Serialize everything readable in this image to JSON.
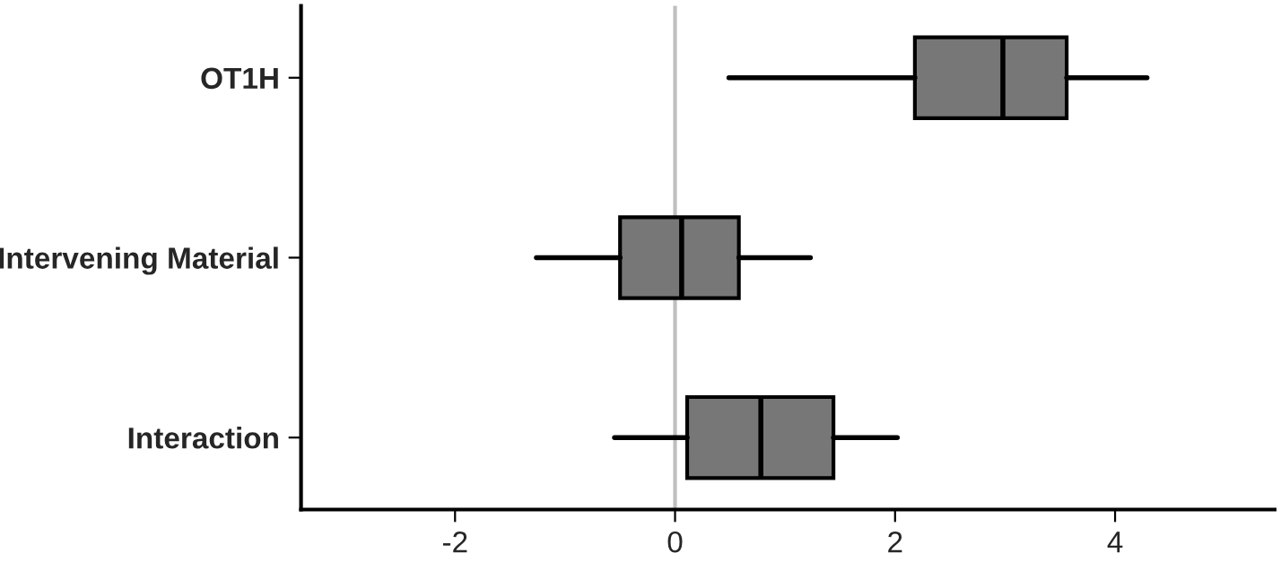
{
  "chart_data": {
    "type": "box",
    "orientation": "horizontal",
    "categories": [
      "OT1H",
      "Intervening Material",
      "Interaction"
    ],
    "boxes": [
      {
        "low": 0.49,
        "q1": 2.18,
        "median": 2.98,
        "q3": 3.56,
        "high": 4.29
      },
      {
        "low": -1.26,
        "q1": -0.5,
        "median": 0.06,
        "q3": 0.58,
        "high": 1.23
      },
      {
        "low": -0.55,
        "q1": 0.11,
        "median": 0.78,
        "q3": 1.44,
        "high": 2.02
      }
    ],
    "color": "#777777",
    "xlim": [
      -3.4,
      5.45
    ],
    "xticks": [
      -2,
      0,
      2,
      4
    ],
    "ref_lines": [
      {
        "axis": "x",
        "value": 0,
        "color": "#bfbfbf"
      }
    ],
    "grid": false,
    "legend": false
  }
}
